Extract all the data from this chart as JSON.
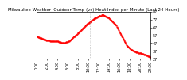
{
  "title": "Milwaukee Weather  Outdoor Temp (vs) Heat Index per Minute (Last 24 Hours)",
  "background_color": "#ffffff",
  "plot_bg_color": "#ffffff",
  "line_color": "#ff0000",
  "line_style": "dashed",
  "line_width": 0.9,
  "marker": ".",
  "marker_size": 1.2,
  "ylim": [
    27,
    87
  ],
  "yticks": [
    27,
    37,
    47,
    57,
    67,
    77,
    87
  ],
  "ytick_labels": [
    "27",
    "37",
    "47",
    "57",
    "67",
    "77",
    "87"
  ],
  "vline_positions": [
    0.27,
    0.47
  ],
  "vline_color": "#aaaaaa",
  "vline_style": "dotted",
  "x": [
    0,
    1,
    2,
    3,
    4,
    5,
    6,
    7,
    8,
    9,
    10,
    11,
    12,
    13,
    14,
    15,
    16,
    17,
    18,
    19,
    20,
    21,
    22,
    23,
    24,
    25,
    26,
    27,
    28,
    29,
    30,
    31,
    32,
    33,
    34,
    35,
    36,
    37,
    38,
    39,
    40,
    41,
    42,
    43,
    44,
    45,
    46,
    47,
    48,
    49,
    50,
    51,
    52,
    53,
    54,
    55,
    56,
    57,
    58,
    59,
    60,
    61,
    62,
    63,
    64,
    65,
    66,
    67,
    68,
    69,
    70,
    71,
    72,
    73,
    74,
    75,
    76,
    77,
    78,
    79,
    80,
    81,
    82,
    83,
    84,
    85,
    86,
    87,
    88,
    89,
    90,
    91,
    92,
    93,
    94,
    95,
    96,
    97,
    98,
    99,
    100,
    101,
    102,
    103,
    104,
    105,
    106,
    107,
    108,
    109,
    110,
    111,
    112,
    113,
    114,
    115,
    116,
    117,
    118,
    119,
    120,
    121,
    122,
    123,
    124,
    125,
    126,
    127,
    128,
    129,
    130,
    131,
    132,
    133,
    134,
    135,
    136,
    137,
    138,
    139,
    140,
    141,
    142,
    143
  ],
  "y": [
    55,
    55,
    54,
    54,
    53,
    53,
    53,
    52,
    52,
    51,
    51,
    51,
    50,
    50,
    50,
    50,
    50,
    49,
    49,
    49,
    49,
    49,
    49,
    49,
    49,
    49,
    49,
    49,
    48,
    48,
    48,
    47,
    47,
    47,
    47,
    47,
    47,
    48,
    48,
    48,
    49,
    49,
    50,
    51,
    52,
    53,
    54,
    55,
    56,
    57,
    58,
    59,
    60,
    61,
    62,
    63,
    64,
    65,
    66,
    67,
    68,
    69,
    70,
    71,
    72,
    73,
    73,
    74,
    75,
    76,
    77,
    77,
    78,
    79,
    79,
    80,
    80,
    81,
    81,
    82,
    82,
    82,
    83,
    83,
    83,
    82,
    82,
    81,
    81,
    80,
    80,
    79,
    78,
    77,
    76,
    75,
    74,
    73,
    72,
    71,
    70,
    68,
    66,
    64,
    62,
    60,
    58,
    56,
    54,
    52,
    50,
    48,
    46,
    44,
    43,
    42,
    41,
    40,
    39,
    38,
    38,
    37,
    37,
    36,
    36,
    35,
    35,
    35,
    34,
    34,
    34,
    34,
    33,
    33,
    33,
    32,
    32,
    32,
    31,
    31,
    30,
    30,
    29,
    29
  ],
  "xtick_count": 12,
  "xtick_labels": [
    "0:00",
    "2:00",
    "4:00",
    "6:00",
    "8:00",
    "10:00",
    "12:00",
    "14:00",
    "16:00",
    "18:00",
    "20:00",
    "22:00"
  ],
  "title_fontsize": 4.0,
  "tick_fontsize": 3.5
}
